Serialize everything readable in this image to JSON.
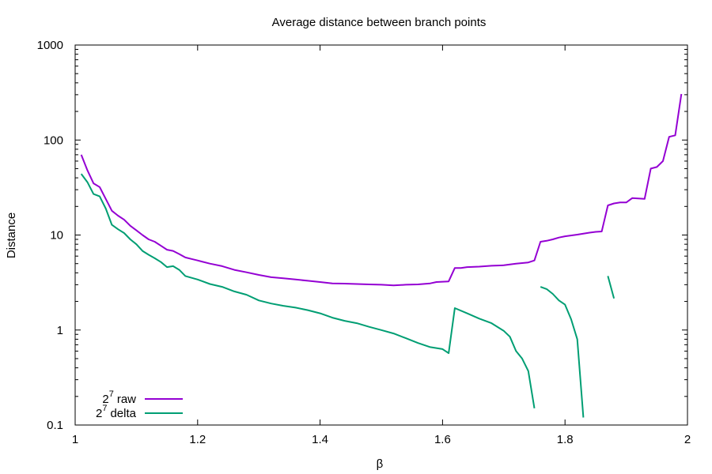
{
  "chart_data": {
    "type": "line",
    "title": "Average distance between branch points",
    "xlabel": "β",
    "ylabel": "Distance",
    "xlim": [
      1,
      2
    ],
    "ylim": [
      0.1,
      1000
    ],
    "yscale": "log",
    "grid": false,
    "legend_placement": "bottom-left",
    "x_ticks": [
      "1",
      "1.2",
      "1.4",
      "1.6",
      "1.8",
      "2"
    ],
    "x_tick_values": [
      1,
      1.2,
      1.4,
      1.6,
      1.8,
      2
    ],
    "y_ticks": [
      "0.1",
      "1",
      "10",
      "100",
      "1000"
    ],
    "y_tick_values": [
      0.1,
      1,
      10,
      100,
      1000
    ],
    "series": [
      {
        "name": "2^7 raw",
        "legend_base": "2",
        "legend_exp": "7",
        "legend_suffix": "raw",
        "color": "#9400d3",
        "segments": [
          [
            [
              1.01,
              70
            ],
            [
              1.02,
              48
            ],
            [
              1.03,
              35
            ],
            [
              1.04,
              32
            ],
            [
              1.05,
              24
            ],
            [
              1.06,
              18
            ],
            [
              1.07,
              16
            ],
            [
              1.08,
              14.5
            ],
            [
              1.09,
              12.5
            ],
            [
              1.1,
              11.2
            ],
            [
              1.11,
              10
            ],
            [
              1.12,
              9
            ],
            [
              1.13,
              8.5
            ],
            [
              1.14,
              7.7
            ],
            [
              1.15,
              7
            ],
            [
              1.16,
              6.8
            ],
            [
              1.17,
              6.3
            ],
            [
              1.18,
              5.8
            ],
            [
              1.19,
              5.6
            ],
            [
              1.2,
              5.4
            ],
            [
              1.22,
              5.0
            ],
            [
              1.24,
              4.7
            ],
            [
              1.26,
              4.3
            ],
            [
              1.28,
              4.05
            ],
            [
              1.3,
              3.8
            ],
            [
              1.32,
              3.6
            ],
            [
              1.34,
              3.5
            ],
            [
              1.36,
              3.4
            ],
            [
              1.38,
              3.3
            ],
            [
              1.4,
              3.2
            ],
            [
              1.42,
              3.1
            ],
            [
              1.44,
              3.08
            ],
            [
              1.46,
              3.05
            ],
            [
              1.48,
              3.02
            ],
            [
              1.5,
              3.0
            ],
            [
              1.52,
              2.95
            ],
            [
              1.54,
              3.0
            ],
            [
              1.56,
              3.02
            ],
            [
              1.58,
              3.1
            ],
            [
              1.59,
              3.2
            ],
            [
              1.61,
              3.25
            ],
            [
              1.62,
              4.5
            ],
            [
              1.63,
              4.5
            ],
            [
              1.64,
              4.6
            ],
            [
              1.66,
              4.65
            ],
            [
              1.68,
              4.75
            ],
            [
              1.7,
              4.8
            ],
            [
              1.72,
              5.0
            ],
            [
              1.74,
              5.15
            ],
            [
              1.75,
              5.4
            ],
            [
              1.76,
              8.5
            ],
            [
              1.77,
              8.7
            ],
            [
              1.78,
              9.0
            ],
            [
              1.79,
              9.4
            ],
            [
              1.8,
              9.7
            ],
            [
              1.82,
              10.1
            ],
            [
              1.84,
              10.6
            ],
            [
              1.85,
              10.8
            ],
            [
              1.86,
              10.9
            ],
            [
              1.87,
              20.5
            ],
            [
              1.88,
              21.5
            ],
            [
              1.89,
              22
            ],
            [
              1.9,
              22
            ],
            [
              1.91,
              24.5
            ],
            [
              1.93,
              24
            ],
            [
              1.94,
              50
            ],
            [
              1.95,
              52
            ],
            [
              1.96,
              60
            ],
            [
              1.97,
              108
            ],
            [
              1.98,
              112
            ],
            [
              1.99,
              305
            ]
          ]
        ]
      },
      {
        "name": "2^7 delta",
        "legend_base": "2",
        "legend_exp": "7",
        "legend_suffix": "delta",
        "color": "#009e73",
        "segments": [
          [
            [
              1.01,
              44
            ],
            [
              1.02,
              36
            ],
            [
              1.03,
              27
            ],
            [
              1.04,
              25.5
            ],
            [
              1.05,
              19
            ],
            [
              1.06,
              12.8
            ],
            [
              1.07,
              11.5
            ],
            [
              1.08,
              10.5
            ],
            [
              1.09,
              9
            ],
            [
              1.1,
              8
            ],
            [
              1.11,
              6.8
            ],
            [
              1.12,
              6.2
            ],
            [
              1.13,
              5.7
            ],
            [
              1.14,
              5.2
            ],
            [
              1.15,
              4.6
            ],
            [
              1.16,
              4.7
            ],
            [
              1.17,
              4.3
            ],
            [
              1.18,
              3.7
            ],
            [
              1.2,
              3.4
            ],
            [
              1.22,
              3.05
            ],
            [
              1.24,
              2.85
            ],
            [
              1.26,
              2.55
            ],
            [
              1.28,
              2.35
            ],
            [
              1.3,
              2.05
            ],
            [
              1.32,
              1.9
            ],
            [
              1.34,
              1.8
            ],
            [
              1.36,
              1.72
            ],
            [
              1.38,
              1.62
            ],
            [
              1.4,
              1.5
            ],
            [
              1.42,
              1.35
            ],
            [
              1.44,
              1.25
            ],
            [
              1.46,
              1.18
            ],
            [
              1.48,
              1.08
            ],
            [
              1.5,
              1.0
            ],
            [
              1.52,
              0.92
            ],
            [
              1.54,
              0.82
            ],
            [
              1.56,
              0.73
            ],
            [
              1.58,
              0.66
            ],
            [
              1.6,
              0.63
            ],
            [
              1.61,
              0.57
            ],
            [
              1.62,
              1.7
            ],
            [
              1.64,
              1.5
            ],
            [
              1.66,
              1.32
            ],
            [
              1.68,
              1.18
            ],
            [
              1.7,
              0.98
            ],
            [
              1.71,
              0.85
            ],
            [
              1.72,
              0.6
            ],
            [
              1.73,
              0.5
            ],
            [
              1.74,
              0.37
            ],
            [
              1.75,
              0.15
            ]
          ],
          [
            [
              1.76,
              2.85
            ],
            [
              1.77,
              2.7
            ],
            [
              1.78,
              2.4
            ],
            [
              1.79,
              2.05
            ],
            [
              1.8,
              1.85
            ],
            [
              1.81,
              1.3
            ],
            [
              1.82,
              0.8
            ],
            [
              1.83,
              0.12
            ]
          ],
          [
            [
              1.87,
              3.7
            ],
            [
              1.88,
              2.15
            ]
          ]
        ]
      }
    ]
  }
}
